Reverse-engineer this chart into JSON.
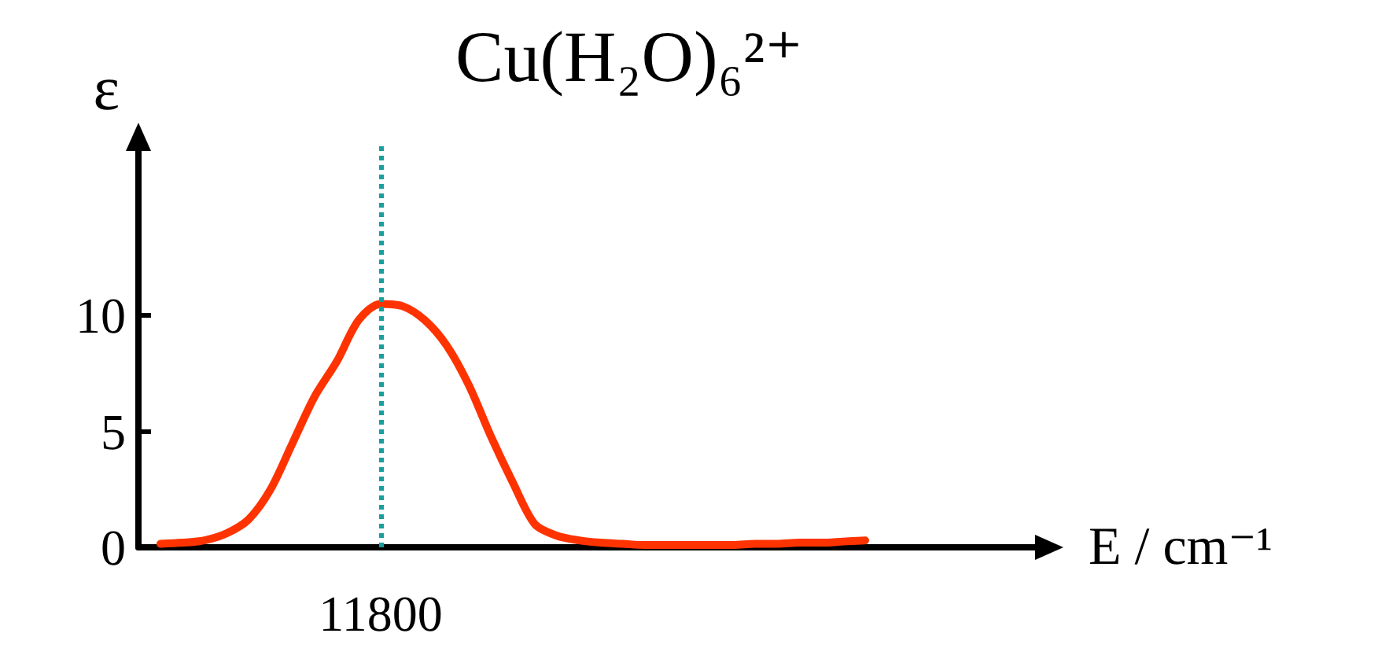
{
  "chart_data": {
    "type": "line",
    "title": "Cu(H₂O)₆²⁺",
    "xlabel": "E / cm⁻¹",
    "ylabel": "ε",
    "categories": [
      null,
      null,
      null,
      null,
      null,
      null,
      null,
      null,
      null,
      null,
      null,
      "11800",
      null,
      null,
      null,
      null,
      null,
      null,
      null,
      null,
      null,
      null,
      null,
      null,
      null,
      null,
      null,
      null,
      null,
      null,
      null,
      null,
      null,
      null,
      null,
      null,
      null,
      null,
      null,
      null,
      null,
      null
    ],
    "series": [
      {
        "color": "#ff3300",
        "values": [
          null,
          0.15,
          0.2,
          0.3,
          0.6,
          1.2,
          2.5,
          4.5,
          6.5,
          8.0,
          9.8,
          10.5,
          10.4,
          9.8,
          8.7,
          7.0,
          4.8,
          2.8,
          1.0,
          0.5,
          0.3,
          0.2,
          0.15,
          0.1,
          0.1,
          0.1,
          0.1,
          0.1,
          0.15,
          0.15,
          0.2,
          0.2,
          0.25,
          0.3,
          null,
          null,
          null,
          null,
          null,
          null,
          null,
          null
        ]
      }
    ],
    "ylim": [
      0,
      17.5
    ],
    "yticks": [
      0,
      5,
      10
    ],
    "grid": false,
    "marker": "none",
    "line_style": "solid",
    "ref_lines": [
      {
        "axis": "x",
        "value": "11800",
        "color": "#1a9e9e",
        "line_style": "dotted"
      }
    ]
  }
}
